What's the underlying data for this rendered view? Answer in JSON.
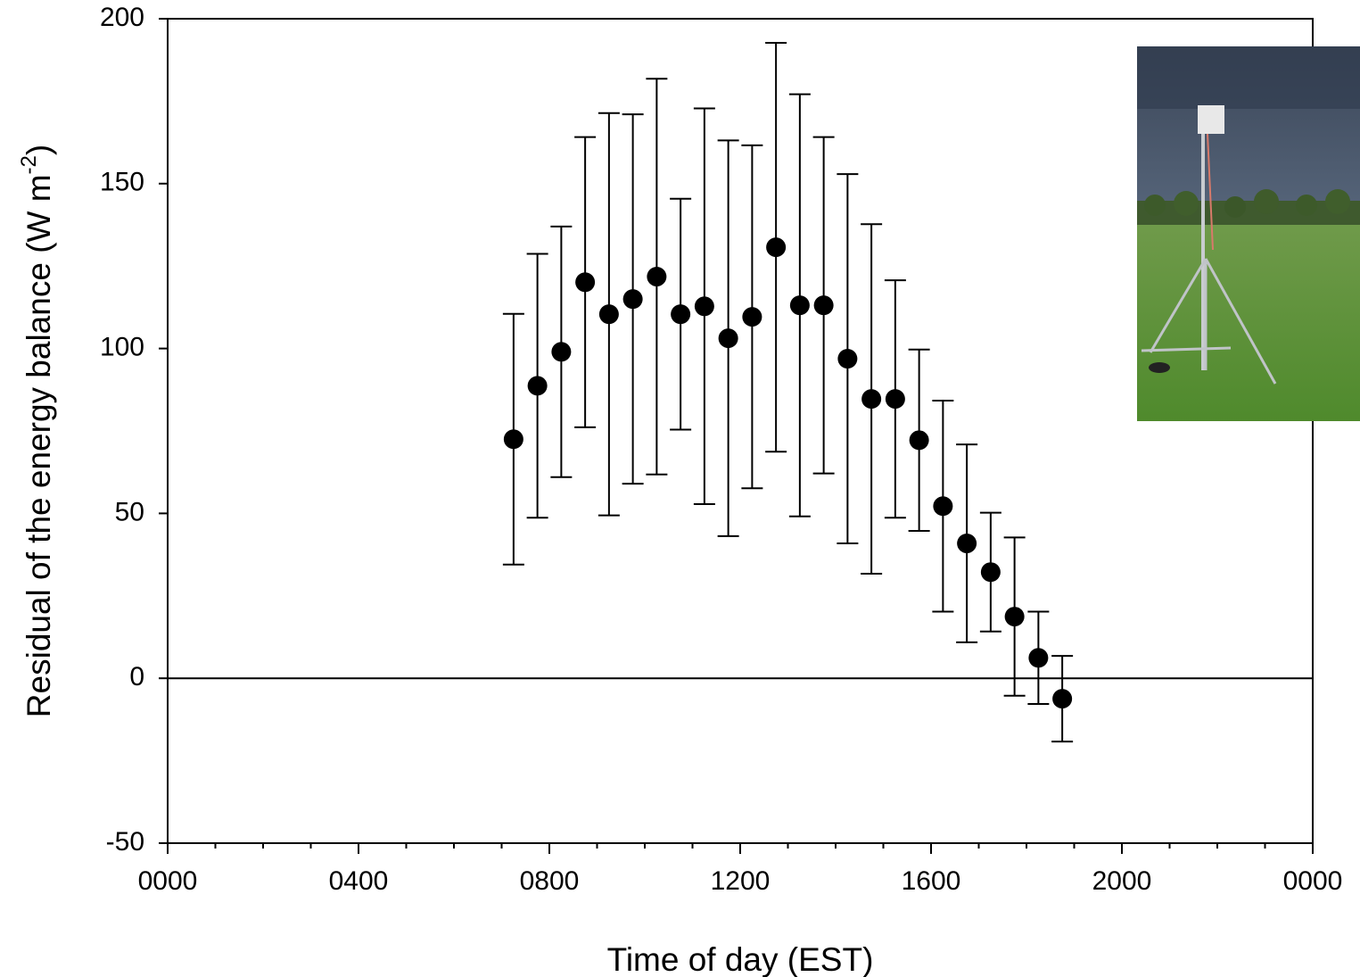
{
  "chart_data": {
    "type": "scatter",
    "xlabel": "Time of day (EST)",
    "ylabel": {
      "text": "Residual of the energy balance (W m",
      "superscript": "-2",
      "suffix": ")"
    },
    "x": [
      7.25,
      7.75,
      8.25,
      8.75,
      9.25,
      9.75,
      10.25,
      10.75,
      11.25,
      11.75,
      12.25,
      12.75,
      13.25,
      13.75,
      14.25,
      14.75,
      15.25,
      15.75,
      16.25,
      16.75,
      17.25,
      17.75,
      18.25,
      18.75
    ],
    "series": [
      {
        "color": "#000000",
        "values": [
          72.5,
          88.7,
          99,
          120.1,
          110.4,
          115,
          121.8,
          110.4,
          112.8,
          103.1,
          109.6,
          130.7,
          113.1,
          113.1,
          96.9,
          84.7,
          84.7,
          72.2,
          52.2,
          40.9,
          32.2,
          18.7,
          6.2,
          -6.2
        ],
        "errors": [
          38,
          40,
          38,
          44,
          61,
          56,
          60,
          35,
          60,
          60,
          52,
          62,
          64,
          51,
          56,
          53,
          36,
          27.5,
          32,
          30,
          18,
          24,
          14,
          13
        ]
      }
    ],
    "xlim": [
      0,
      24
    ],
    "xticks": [
      {
        "value": 0,
        "label": "0000"
      },
      {
        "value": 4,
        "label": "0400"
      },
      {
        "value": 8,
        "label": "0800"
      },
      {
        "value": 12,
        "label": "1200"
      },
      {
        "value": 16,
        "label": "1600"
      },
      {
        "value": 20,
        "label": "2000"
      },
      {
        "value": 24,
        "label": "0000"
      }
    ],
    "xminorticks": [
      1,
      2,
      3,
      5,
      6,
      7,
      9,
      10,
      11,
      13,
      14,
      15,
      17,
      18,
      19,
      21,
      22,
      23
    ],
    "ylim": [
      -50,
      200
    ],
    "yticks": [
      200,
      150,
      100,
      50,
      0,
      -50
    ],
    "hline": 0,
    "grid": false
  }
}
